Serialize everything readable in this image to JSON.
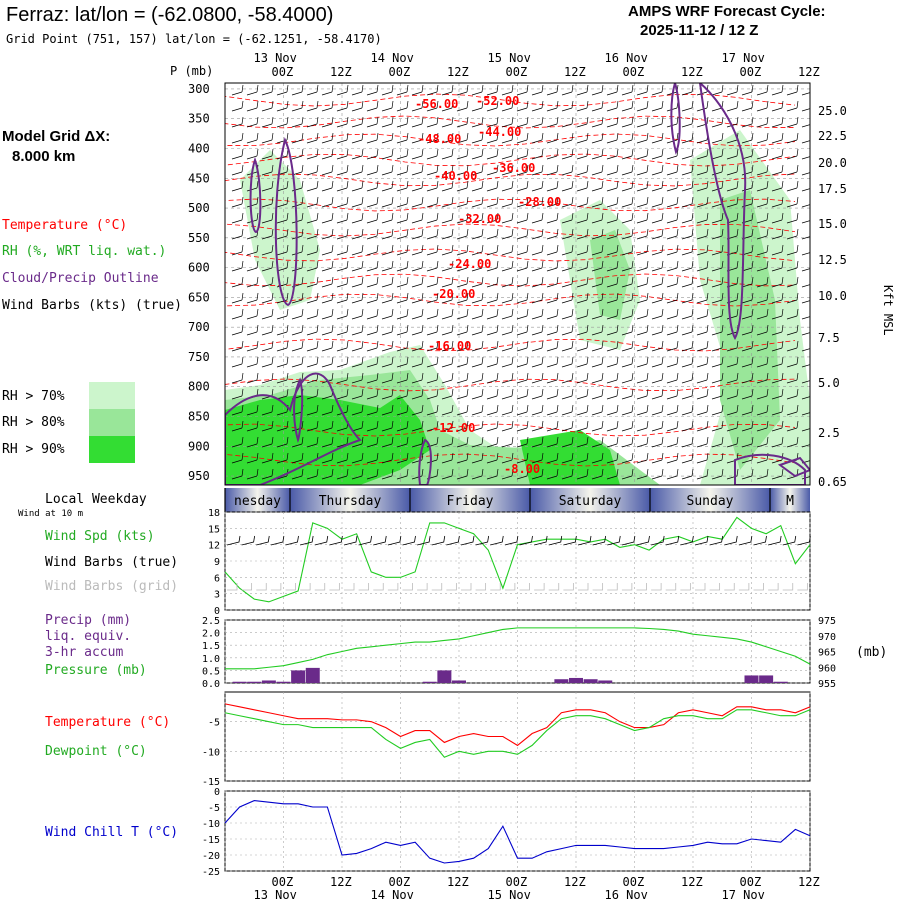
{
  "header": {
    "title": "Ferraz:  lat/lon = (-62.0800, -58.4000)",
    "grid_point": "Grid Point (751, 157) lat/lon = (-62.1251, -58.4170)",
    "forecast_title": "AMPS WRF Forecast Cycle:",
    "forecast_cycle": "2025-11-12 / 12  Z"
  },
  "sidebar": {
    "grid_dx_label": "Model Grid ΔX:",
    "grid_dx_value": "8.000 km",
    "legend_temperature": "Temperature (°C)",
    "legend_rh": "RH (%, WRT liq. wat.)",
    "legend_cloud": "Cloud/Precip Outline",
    "legend_wind": "Wind Barbs (kts) (true)",
    "rh70": "RH > 70%",
    "rh80": "RH > 80%",
    "rh90": "RH > 90%",
    "local_weekday": "Local Weekday",
    "wind10": "Wind at 10 m",
    "wind_spd": "Wind Spd (kts)",
    "wind_barbs_true": "Wind Barbs (true)",
    "wind_barbs_grid": "Wind Barbs (grid)",
    "precip": "Precip (mm)",
    "liq_equiv": "liq. equiv.",
    "accum": "3-hr accum",
    "pressure": "Pressure (mb)",
    "pressure_unit": "(mb)",
    "temperature": "Temperature (°C)",
    "dewpoint": "Dewpoint (°C)",
    "windchill": "Wind Chill T (°C)"
  },
  "colors": {
    "temperature": "#ff0000",
    "green": "#22cc22",
    "purple": "#6a2a8a",
    "windchill": "#0000cc",
    "rh70": "#ccf5cc",
    "rh80": "#99e699",
    "rh90": "#33dd33"
  },
  "chart_data": [
    {
      "type": "heatmap",
      "title": "",
      "ylabel": "P (mb)",
      "y2label": "Kft MSL",
      "x_tick_labels": [
        "00Z",
        "12Z",
        "00Z",
        "12Z",
        "00Z",
        "12Z",
        "00Z",
        "12Z",
        "00Z",
        "12Z"
      ],
      "date_labels": [
        "13 Nov",
        "14 Nov",
        "15 Nov",
        "16 Nov",
        "17 Nov"
      ],
      "pressure_ticks": [
        300,
        350,
        400,
        450,
        500,
        550,
        600,
        650,
        700,
        750,
        800,
        850,
        900,
        950
      ],
      "height_ticks": [
        "25.0",
        "22.5",
        "20.0",
        "17.5",
        "15.0",
        "12.5",
        "10.0",
        "7.5",
        "5.0",
        "2.5",
        "0.65"
      ],
      "temperature_labels": [
        "-56.00",
        "-52.00",
        "-48.00",
        "-44.00",
        "-40.00",
        "-36.00",
        "-28.00",
        "-32.00",
        "-24.00",
        "-20.00",
        "-16.00",
        "-12.00",
        "-8.00"
      ]
    },
    {
      "type": "table",
      "title": "",
      "weekdays": [
        "nesday",
        "Thursday",
        "Friday",
        "Saturday",
        "Sunday",
        "M"
      ]
    },
    {
      "type": "line",
      "title": "",
      "ylabel": "Wind Spd (kts)",
      "ylim": [
        0,
        18
      ],
      "yticks": [
        0,
        3,
        6,
        9,
        12,
        15,
        18
      ],
      "x_hours": [
        0,
        3,
        6,
        9,
        12,
        15,
        18,
        21,
        24,
        27,
        30,
        33,
        36,
        39,
        42,
        45,
        48,
        51,
        54,
        57,
        60,
        63,
        66,
        69,
        72,
        75,
        78,
        81,
        84,
        87,
        90,
        93,
        96,
        99,
        102,
        105,
        108,
        111,
        114,
        117,
        120
      ],
      "series": [
        {
          "values": [
            7,
            4,
            2,
            1.5,
            2.5,
            3.5,
            16,
            15,
            13,
            14,
            7,
            6,
            6,
            7,
            16,
            16,
            15,
            14,
            11,
            4,
            12,
            12.5,
            13,
            13,
            13,
            12.5,
            13,
            11.5,
            12,
            11,
            13,
            13.5,
            12.5,
            13.5,
            13,
            17,
            15,
            14,
            15.5,
            8.5,
            12
          ]
        }
      ]
    },
    {
      "type": "bar",
      "title": "",
      "ylabel": "Precip (mm)",
      "y2label": "(mb)",
      "ylim": [
        0,
        2.5
      ],
      "yticks": [
        "0.0",
        "0.5",
        "1.0",
        "1.5",
        "2.0",
        "2.5"
      ],
      "y2lim": [
        955,
        975
      ],
      "y2ticks": [
        955,
        960,
        965,
        970,
        975
      ],
      "x_hours": [
        0,
        3,
        6,
        9,
        12,
        15,
        18,
        21,
        24,
        27,
        30,
        33,
        36,
        39,
        42,
        45,
        48,
        51,
        54,
        57,
        60,
        63,
        66,
        69,
        72,
        75,
        78,
        81,
        84,
        87,
        90,
        93,
        96,
        99,
        102,
        105,
        108,
        111,
        114,
        117,
        120
      ],
      "series": [
        {
          "values": [
            0,
            0.05,
            0.05,
            0.1,
            0.05,
            0.5,
            0.6,
            0,
            0,
            0,
            0,
            0,
            0,
            0,
            0.05,
            0.5,
            0.1,
            0,
            0,
            0,
            0,
            0,
            0,
            0.15,
            0.2,
            0.15,
            0.1,
            0,
            0,
            0,
            0,
            0,
            0,
            0,
            0,
            0,
            0.3,
            0.3,
            0.05,
            0,
            0
          ]
        },
        {
          "values": [
            959.5,
            959.5,
            959.5,
            960,
            960.5,
            961.5,
            962.5,
            964,
            965,
            966,
            966.5,
            967,
            967.5,
            968,
            968,
            968.5,
            969,
            970,
            971,
            972,
            972.5,
            972.5,
            972.5,
            972.5,
            972.5,
            972.5,
            972.5,
            972.5,
            972.5,
            972.3,
            972,
            971.5,
            970.5,
            970,
            969.5,
            969,
            968,
            966.5,
            965,
            963.5,
            961
          ]
        }
      ]
    },
    {
      "type": "line",
      "title": "",
      "ylabel": "Temperature (°C)",
      "ylim": [
        -15,
        0
      ],
      "yticks": [
        -15,
        -10,
        -5
      ],
      "x_hours": [
        0,
        3,
        6,
        9,
        12,
        15,
        18,
        21,
        24,
        27,
        30,
        33,
        36,
        39,
        42,
        45,
        48,
        51,
        54,
        57,
        60,
        63,
        66,
        69,
        72,
        75,
        78,
        81,
        84,
        87,
        90,
        93,
        96,
        99,
        102,
        105,
        108,
        111,
        114,
        117,
        120
      ],
      "series": [
        {
          "values": [
            -2,
            -2.5,
            -3,
            -3.5,
            -4,
            -4.5,
            -4.5,
            -4.5,
            -4.7,
            -4.7,
            -5,
            -6,
            -7.5,
            -6.5,
            -6.5,
            -8.5,
            -7.5,
            -7,
            -7.5,
            -7.5,
            -9,
            -7,
            -6,
            -3.5,
            -3,
            -3,
            -3.5,
            -5,
            -6,
            -6,
            -5.5,
            -3.5,
            -3,
            -3.5,
            -4,
            -2.5,
            -2.5,
            -3,
            -3,
            -3.5,
            -2.5
          ]
        },
        {
          "values": [
            -3.5,
            -4,
            -4.5,
            -5,
            -5.5,
            -5.5,
            -6,
            -6,
            -6,
            -6,
            -6,
            -8,
            -9.5,
            -8.5,
            -8,
            -11,
            -10,
            -10.5,
            -10,
            -10,
            -10.5,
            -9,
            -6.5,
            -4.5,
            -4,
            -4,
            -4.5,
            -5.5,
            -6.5,
            -6,
            -4.5,
            -4,
            -4,
            -4.5,
            -4.5,
            -3,
            -3,
            -3.5,
            -4,
            -4,
            -3
          ]
        }
      ]
    },
    {
      "type": "line",
      "title": "",
      "ylabel": "Wind Chill T (°C)",
      "ylim": [
        -25,
        0
      ],
      "yticks": [
        -25,
        -20,
        -15,
        -10,
        -5,
        0
      ],
      "x_hours": [
        0,
        3,
        6,
        9,
        12,
        15,
        18,
        21,
        24,
        27,
        30,
        33,
        36,
        39,
        42,
        45,
        48,
        51,
        54,
        57,
        60,
        63,
        66,
        69,
        72,
        75,
        78,
        81,
        84,
        87,
        90,
        93,
        96,
        99,
        102,
        105,
        108,
        111,
        114,
        117,
        120
      ],
      "series": [
        {
          "values": [
            -10,
            -5,
            -3,
            -3.5,
            -4,
            -4,
            -5,
            -5,
            -20,
            -19.5,
            -18,
            -16,
            -17,
            -16,
            -21,
            -22.5,
            -22,
            -21,
            -18,
            -11,
            -21,
            -21,
            -19,
            -18,
            -17,
            -17,
            -17,
            -17.5,
            -18,
            -18,
            -18,
            -17.5,
            -17,
            -16,
            -16.5,
            -16.5,
            -15,
            -15.5,
            -16,
            -12,
            -14
          ]
        }
      ]
    }
  ]
}
